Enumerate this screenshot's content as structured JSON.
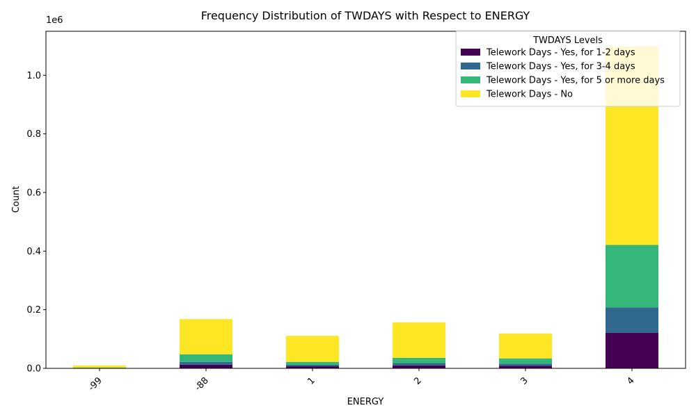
{
  "chart_data": {
    "type": "bar",
    "stacked": true,
    "title": "Frequency Distribution of TWDAYS with Respect to ENERGY",
    "xlabel": "ENERGY",
    "ylabel": "Count",
    "y_scale_label": "1e6",
    "categories": [
      "-99",
      "-88",
      "1",
      "2",
      "3",
      "4"
    ],
    "ylim": [
      0,
      1.15
    ],
    "yticks": [
      "0.0",
      "0.2",
      "0.4",
      "0.6",
      "0.8",
      "1.0"
    ],
    "y_units": "millions (×1e6)",
    "legend_title": "TWDAYS Levels",
    "legend_position": "top-right",
    "grid": false,
    "series": [
      {
        "name": "Telework Days - Yes, for 1-2 days",
        "color": "#440154",
        "values": [
          0.001,
          0.012,
          0.007,
          0.01,
          0.009,
          0.121
        ]
      },
      {
        "name": "Telework Days - Yes, for 3-4 days",
        "color": "#31688e",
        "values": [
          0.0005,
          0.01,
          0.005,
          0.008,
          0.007,
          0.087
        ]
      },
      {
        "name": "Telework Days - Yes, for 5 or more days",
        "color": "#35b779",
        "values": [
          0.001,
          0.026,
          0.01,
          0.018,
          0.018,
          0.213
        ]
      },
      {
        "name": "Telework Days - No",
        "color": "#fde725",
        "values": [
          0.0075,
          0.12,
          0.089,
          0.121,
          0.085,
          0.677
        ]
      }
    ]
  }
}
